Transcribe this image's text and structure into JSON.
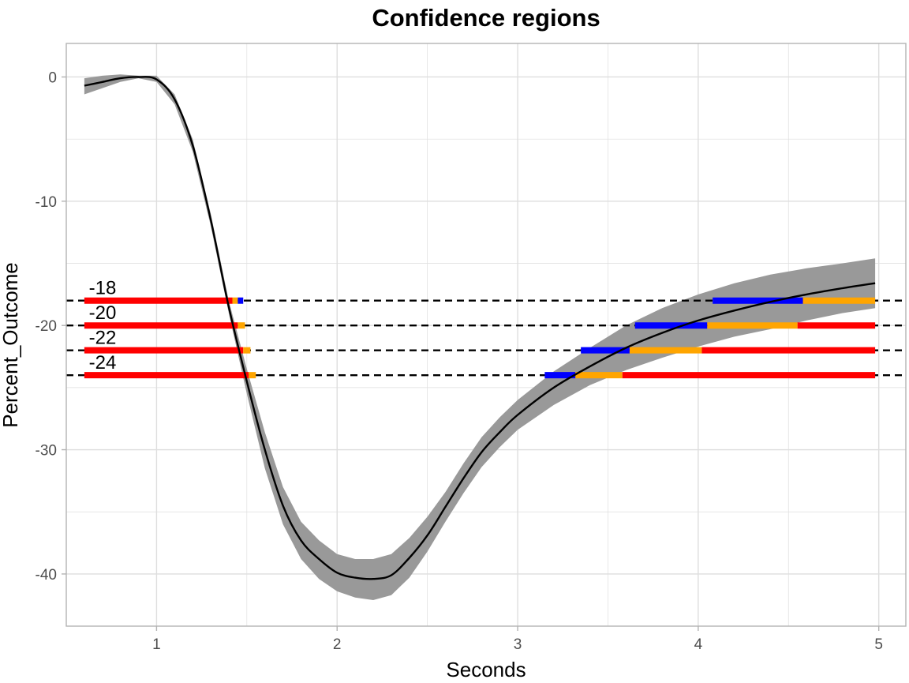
{
  "chart_data": {
    "type": "line",
    "title": "Confidence regions",
    "xlabel": "Seconds",
    "ylabel": "Percent_Outcome",
    "xlim": [
      0.5,
      5.15
    ],
    "ylim": [
      -44.2,
      2.7
    ],
    "x_ticks": [
      1,
      2,
      3,
      4,
      5
    ],
    "y_ticks": [
      0,
      -10,
      -20,
      -30,
      -40
    ],
    "grid": true,
    "legend": "none",
    "colors": {
      "line": "#000000",
      "ribbon": "#999999",
      "reference": "#000000",
      "significant": "#ff0000",
      "uncertain": "#ffa500",
      "not_significant": "#0000ff",
      "grid": "#dedede",
      "panel_border": "#b3b3b3"
    },
    "series": [
      {
        "x": [
          0.6,
          0.7,
          0.8,
          0.9,
          1.0,
          1.1,
          1.2,
          1.3,
          1.4,
          1.5,
          1.6,
          1.7,
          1.8,
          1.9,
          2.0,
          2.1,
          2.2,
          2.3,
          2.4,
          2.5,
          2.6,
          2.7,
          2.8,
          2.9,
          3.0,
          3.2,
          3.4,
          3.6,
          3.8,
          4.0,
          4.2,
          4.4,
          4.6,
          4.8,
          4.98
        ],
        "y": [
          -0.7,
          -0.4,
          -0.1,
          0.0,
          -0.2,
          -1.8,
          -5.5,
          -11.5,
          -18.5,
          -24.5,
          -30.0,
          -34.5,
          -37.3,
          -38.8,
          -39.9,
          -40.3,
          -40.4,
          -40.1,
          -38.7,
          -36.9,
          -34.6,
          -32.3,
          -30.2,
          -28.6,
          -27.2,
          -25.0,
          -23.3,
          -21.8,
          -20.6,
          -19.6,
          -18.8,
          -18.1,
          -17.5,
          -17.0,
          -16.6
        ],
        "lower": [
          -1.4,
          -0.9,
          -0.4,
          -0.1,
          -0.4,
          -2.2,
          -6.0,
          -12.0,
          -19.0,
          -25.5,
          -31.5,
          -36.0,
          -38.8,
          -40.4,
          -41.4,
          -41.9,
          -42.1,
          -41.7,
          -40.3,
          -38.2,
          -35.8,
          -33.5,
          -31.4,
          -29.8,
          -28.4,
          -26.4,
          -24.8,
          -23.6,
          -22.6,
          -21.7,
          -20.9,
          -20.3,
          -19.6,
          -19.0,
          -18.6
        ],
        "upper": [
          -0.1,
          0.1,
          0.2,
          0.1,
          0.1,
          -1.4,
          -5.0,
          -11.0,
          -18.0,
          -23.5,
          -28.6,
          -33.0,
          -35.8,
          -37.3,
          -38.4,
          -38.8,
          -38.8,
          -38.4,
          -37.1,
          -35.4,
          -33.4,
          -31.1,
          -29.0,
          -27.4,
          -26.0,
          -23.7,
          -21.8,
          -20.0,
          -18.6,
          -17.5,
          -16.6,
          -15.9,
          -15.4,
          -15.0,
          -14.6
        ]
      }
    ],
    "reference_lines": [
      {
        "label": "-18",
        "y": -18,
        "segments": [
          {
            "from": 0.6,
            "to": 1.42,
            "status": "significant"
          },
          {
            "from": 1.42,
            "to": 1.45,
            "status": "uncertain"
          },
          {
            "from": 1.45,
            "to": 1.48,
            "status": "not_significant"
          },
          {
            "from": 4.08,
            "to": 4.58,
            "status": "not_significant"
          },
          {
            "from": 4.58,
            "to": 4.98,
            "status": "uncertain"
          }
        ]
      },
      {
        "label": "-20",
        "y": -20,
        "segments": [
          {
            "from": 0.6,
            "to": 1.45,
            "status": "significant"
          },
          {
            "from": 1.45,
            "to": 1.49,
            "status": "uncertain"
          },
          {
            "from": 3.65,
            "to": 4.05,
            "status": "not_significant"
          },
          {
            "from": 4.05,
            "to": 4.55,
            "status": "uncertain"
          },
          {
            "from": 4.55,
            "to": 4.98,
            "status": "significant"
          }
        ]
      },
      {
        "label": "-22",
        "y": -22,
        "segments": [
          {
            "from": 0.6,
            "to": 1.48,
            "status": "significant"
          },
          {
            "from": 1.48,
            "to": 1.52,
            "status": "uncertain"
          },
          {
            "from": 3.35,
            "to": 3.62,
            "status": "not_significant"
          },
          {
            "from": 3.62,
            "to": 4.02,
            "status": "uncertain"
          },
          {
            "from": 4.02,
            "to": 4.98,
            "status": "significant"
          }
        ]
      },
      {
        "label": "-24",
        "y": -24,
        "segments": [
          {
            "from": 0.6,
            "to": 1.51,
            "status": "significant"
          },
          {
            "from": 1.51,
            "to": 1.55,
            "status": "uncertain"
          },
          {
            "from": 3.15,
            "to": 3.32,
            "status": "not_significant"
          },
          {
            "from": 3.32,
            "to": 3.58,
            "status": "uncertain"
          },
          {
            "from": 3.58,
            "to": 4.98,
            "status": "significant"
          }
        ]
      }
    ]
  }
}
